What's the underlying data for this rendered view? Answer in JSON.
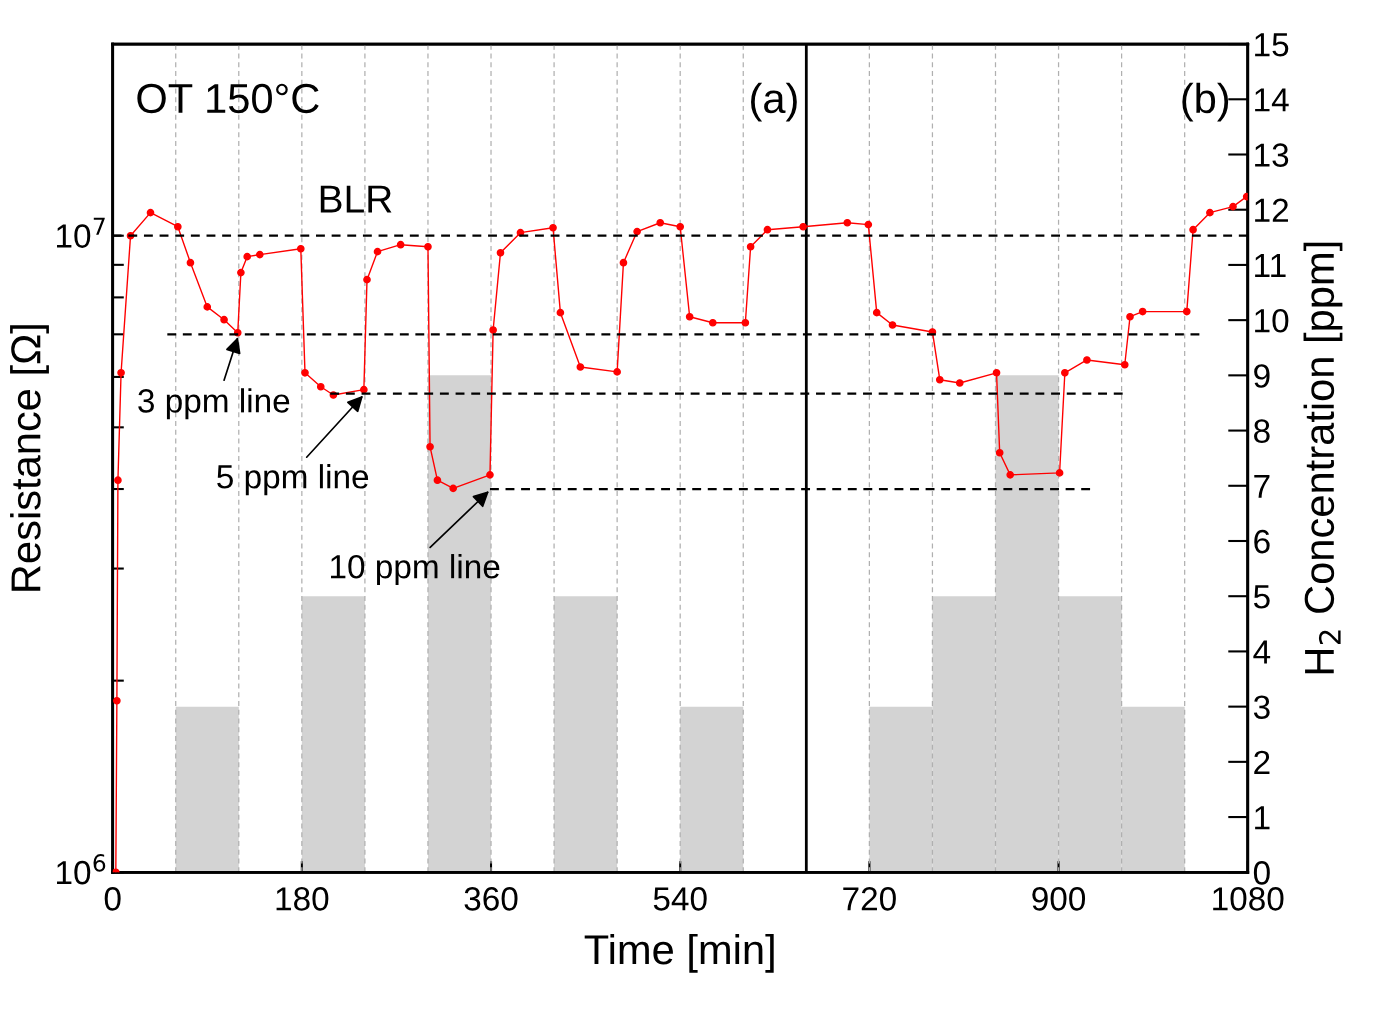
{
  "chart_data": {
    "type": "line",
    "xlabel": "Time [min]",
    "ylabel": "Resistance [Ω]",
    "y2label": "H$_{2}$ Concentration [ppm]",
    "log": "y",
    "xlim": [
      0,
      1080
    ],
    "xticks": [
      0,
      180,
      360,
      540,
      720,
      900,
      1080
    ],
    "ylim": [
      1000000,
      20000000
    ],
    "yticks": [
      {
        "value": 1000000,
        "label": "10$^{6}$"
      },
      {
        "value": 2000000,
        "label": null
      },
      {
        "value": 3000000,
        "label": null
      },
      {
        "value": 4000000,
        "label": null
      },
      {
        "value": 5000000,
        "label": null
      },
      {
        "value": 6000000,
        "label": null
      },
      {
        "value": 7000000,
        "label": null
      },
      {
        "value": 8000000,
        "label": null
      },
      {
        "value": 9000000,
        "label": null
      },
      {
        "value": 10000000,
        "label": "10$^{7}$"
      }
    ],
    "y2lim": [
      0,
      15
    ],
    "y2ticks": [
      0,
      1,
      2,
      3,
      4,
      5,
      6,
      7,
      8,
      9,
      10,
      11,
      12,
      13,
      14,
      15
    ],
    "grid": false,
    "legend": false,
    "series": [
      {
        "type": "histogram",
        "axis": "y2",
        "color": "#d3d3d3",
        "bins": [
          0,
          60,
          120,
          180,
          240,
          300,
          360,
          420,
          480,
          540,
          600,
          660,
          720,
          780,
          840,
          900,
          960,
          1020,
          1080
        ],
        "values": [
          0,
          3,
          0,
          5,
          0,
          9,
          0,
          5,
          0,
          3,
          0,
          0,
          3,
          5,
          9,
          5,
          3,
          0
        ]
      },
      {
        "color": "#000000",
        "line_style": "dashed",
        "marker": "none",
        "x": [
          0,
          1080
        ],
        "values": [
          10000000,
          10000000
        ]
      },
      {
        "color": "#000000",
        "line_style": "dashed",
        "marker": "none",
        "x": [
          52,
          1034
        ],
        "values": [
          7000000,
          7000000
        ]
      },
      {
        "color": "#000000",
        "line_style": "dashed",
        "marker": "none",
        "x": [
          207,
          961
        ],
        "values": [
          5650000,
          5650000
        ]
      },
      {
        "color": "#000000",
        "line_style": "dashed",
        "marker": "none",
        "x": [
          359,
          930
        ],
        "values": [
          4000000,
          4000000
        ]
      },
      {
        "color": "#ff0000",
        "line_style": "solid",
        "marker": "circle",
        "x": [
          3,
          4,
          5,
          8,
          17,
          36,
          62,
          74,
          90,
          106,
          119,
          122,
          128,
          140,
          179,
          183,
          198,
          210,
          239,
          242,
          252,
          274,
          300,
          302,
          309,
          324,
          359,
          362,
          369,
          388,
          419,
          426,
          445,
          480,
          486,
          499,
          521,
          540,
          549,
          571,
          602,
          607,
          623,
          657,
          699,
          719,
          727,
          742,
          780,
          787,
          806,
          841,
          844,
          854,
          901,
          906,
          927,
          963,
          968,
          980,
          1022,
          1028,
          1044,
          1066,
          1079
        ],
        "values": [
          1000000,
          1860000,
          4130000,
          6090000,
          10000000,
          10870000,
          10330000,
          9070000,
          7730000,
          7380000,
          7040000,
          8750000,
          9270000,
          9340000,
          9540000,
          6090000,
          5790000,
          5620000,
          5730000,
          8530000,
          9440000,
          9680000,
          9610000,
          4660000,
          4130000,
          4010000,
          4210000,
          7110000,
          9400000,
          10110000,
          10290000,
          7570000,
          6220000,
          6110000,
          9070000,
          10150000,
          10480000,
          10330000,
          7460000,
          7300000,
          7300000,
          9610000,
          10220000,
          10330000,
          10480000,
          10410000,
          7570000,
          7240000,
          7060000,
          5940000,
          5870000,
          6090000,
          4560000,
          4210000,
          4240000,
          6090000,
          6380000,
          6270000,
          7460000,
          7600000,
          7600000,
          10220000,
          10870000,
          11110000,
          11520000
        ]
      }
    ],
    "ref_lines": [
      {
        "axis": "x",
        "value": 60,
        "color": "#b0b0b0",
        "line_style": "dashed"
      },
      {
        "axis": "x",
        "value": 120,
        "color": "#b0b0b0",
        "line_style": "dashed"
      },
      {
        "axis": "x",
        "value": 180,
        "color": "#b0b0b0",
        "line_style": "dashed"
      },
      {
        "axis": "x",
        "value": 240,
        "color": "#b0b0b0",
        "line_style": "dashed"
      },
      {
        "axis": "x",
        "value": 300,
        "color": "#b0b0b0",
        "line_style": "dashed"
      },
      {
        "axis": "x",
        "value": 360,
        "color": "#b0b0b0",
        "line_style": "dashed"
      },
      {
        "axis": "x",
        "value": 420,
        "color": "#b0b0b0",
        "line_style": "dashed"
      },
      {
        "axis": "x",
        "value": 480,
        "color": "#b0b0b0",
        "line_style": "dashed"
      },
      {
        "axis": "x",
        "value": 540,
        "color": "#b0b0b0",
        "line_style": "dashed"
      },
      {
        "axis": "x",
        "value": 600,
        "color": "#b0b0b0",
        "line_style": "dashed"
      },
      {
        "axis": "x",
        "value": 660,
        "color": "#000000",
        "line_style": "solid"
      },
      {
        "axis": "x",
        "value": 720,
        "color": "#b0b0b0",
        "line_style": "dashed"
      },
      {
        "axis": "x",
        "value": 780,
        "color": "#b0b0b0",
        "line_style": "dashed"
      },
      {
        "axis": "x",
        "value": 840,
        "color": "#b0b0b0",
        "line_style": "dashed"
      },
      {
        "axis": "x",
        "value": 900,
        "color": "#b0b0b0",
        "line_style": "dashed"
      },
      {
        "axis": "x",
        "value": 960,
        "color": "#b0b0b0",
        "line_style": "dashed"
      },
      {
        "axis": "x",
        "value": 1020,
        "color": "#b0b0b0",
        "line_style": "dashed"
      }
    ],
    "annotations": [
      "OT 150°C",
      "(a)",
      "(b)",
      {
        "text": "BLR",
        "x": 231,
        "y": 10000000
      },
      {
        "text": "3 ppm line",
        "x": 120,
        "y": 7000000
      },
      {
        "text": "5 ppm line",
        "x": 240,
        "y": 5650000
      },
      {
        "text": "10 ppm line",
        "x": 360,
        "y": 4000000
      }
    ]
  }
}
